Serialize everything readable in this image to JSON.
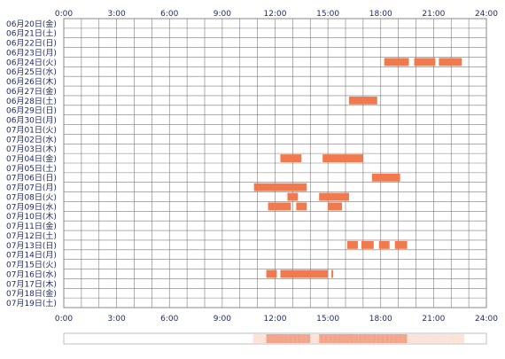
{
  "chart_data": {
    "type": "heatmap",
    "title": "",
    "xlabel": "",
    "ylabel": "",
    "xlim": [
      0,
      24
    ],
    "grid": true,
    "x_ticks": [
      "0:00",
      "3:00",
      "6:00",
      "9:00",
      "12:00",
      "15:00",
      "18:00",
      "21:00",
      "24:00"
    ],
    "rows": [
      "06月20日(金)",
      "06月21日(土)",
      "06月22日(日)",
      "06月23日(月)",
      "06月24日(火)",
      "06月25日(水)",
      "06月26日(木)",
      "06月27日(金)",
      "06月28日(土)",
      "06月29日(日)",
      "06月30日(月)",
      "07月01日(火)",
      "07月02日(水)",
      "07月03日(木)",
      "07月04日(金)",
      "07月05日(土)",
      "07月06日(日)",
      "07月07日(月)",
      "07月08日(火)",
      "07月09日(水)",
      "07月10日(木)",
      "07月11日(金)",
      "07月12日(土)",
      "07月13日(日)",
      "07月14日(月)",
      "07月15日(火)",
      "07月16日(水)",
      "07月17日(木)",
      "07月18日(金)",
      "07月19日(土)"
    ],
    "activity": [
      {
        "row": 4,
        "segments": [
          [
            18.2,
            19.6
          ],
          [
            19.9,
            21.1
          ],
          [
            21.3,
            22.6
          ]
        ]
      },
      {
        "row": 8,
        "segments": [
          [
            16.2,
            17.8
          ]
        ]
      },
      {
        "row": 14,
        "segments": [
          [
            12.3,
            13.5
          ],
          [
            14.7,
            17.0
          ]
        ]
      },
      {
        "row": 16,
        "segments": [
          [
            17.5,
            19.1
          ]
        ]
      },
      {
        "row": 17,
        "segments": [
          [
            10.8,
            13.8
          ]
        ]
      },
      {
        "row": 18,
        "segments": [
          [
            12.7,
            13.3
          ],
          [
            14.5,
            16.2
          ]
        ]
      },
      {
        "row": 19,
        "segments": [
          [
            11.6,
            12.9
          ],
          [
            13.2,
            13.8
          ],
          [
            15.0,
            15.8
          ]
        ]
      },
      {
        "row": 23,
        "segments": [
          [
            16.1,
            16.7
          ],
          [
            16.9,
            17.6
          ],
          [
            17.9,
            18.5
          ],
          [
            18.8,
            19.5
          ]
        ]
      },
      {
        "row": 26,
        "segments": [
          [
            11.5,
            12.1
          ],
          [
            12.3,
            15.0
          ],
          [
            15.2,
            15.3
          ]
        ]
      }
    ],
    "colors": {
      "bar": "#f07a4e",
      "grid": "#7a7a7a",
      "frame": "#888888",
      "label": "#1e2a66",
      "summary_low": "#fbe3d8",
      "summary_high": "#f2a58a"
    }
  }
}
